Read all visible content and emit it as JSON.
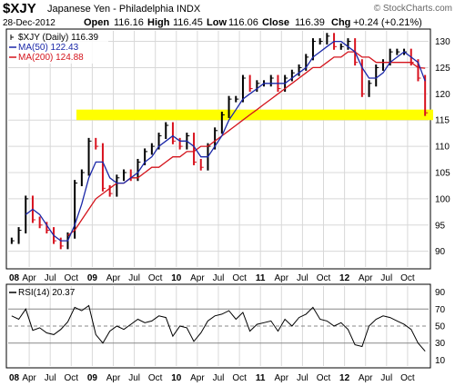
{
  "header": {
    "symbol": "$XJY",
    "name": "Japanese Yen - Philadelphia INDX",
    "date": "28-Dec-2012",
    "open_label": "Open",
    "open": "116.16",
    "high_label": "High",
    "high": "116.45",
    "low_label": "Low",
    "low": "116.06",
    "close_label": "Close",
    "close": "116.39",
    "chg_label": "Chg",
    "chg": "+0.24 (+0.21%)",
    "watermark": "© StockCharts.com"
  },
  "colors": {
    "price": "#000000",
    "up_bar": "#000000",
    "down_bar": "#d8121e",
    "ma50": "#1a27a8",
    "ma200": "#d4141c",
    "rsi": "#000000",
    "highlight": "#ffff00",
    "grid": "#d8d8d8"
  },
  "chart_data": [
    {
      "type": "line",
      "panel": "price",
      "title": "$XJY (Daily) 116.39",
      "legend": [
        {
          "label": "$XJY (Daily) 116.39",
          "color": "#000000"
        },
        {
          "label": "MA(50) 122.43",
          "color": "#1a27a8"
        },
        {
          "label": "MA(200) 124.88",
          "color": "#d4141c"
        }
      ],
      "legend_position": "top-left",
      "ylim": [
        87,
        132
      ],
      "y_ticks": [
        90,
        95,
        100,
        105,
        110,
        115,
        120,
        125,
        130
      ],
      "x_range": [
        "2008-01",
        "2013-01"
      ],
      "x_tick_labels": [
        "08",
        "Apr",
        "Jul",
        "Oct",
        "09",
        "Apr",
        "Jul",
        "Oct",
        "10",
        "Apr",
        "Jul",
        "Oct",
        "11",
        "Apr",
        "Jul",
        "Oct",
        "12",
        "Apr",
        "Jul",
        "Oct"
      ],
      "x_tick_bold": [
        true,
        false,
        false,
        false,
        true,
        false,
        false,
        false,
        true,
        false,
        false,
        false,
        true,
        false,
        false,
        false,
        true,
        false,
        false,
        false
      ],
      "highlight_band": [
        115,
        117
      ],
      "grid": true,
      "series": [
        {
          "name": "$XJY",
          "x": [
            "2008-01",
            "2008-02",
            "2008-03",
            "2008-04",
            "2008-05",
            "2008-06",
            "2008-07",
            "2008-08",
            "2008-09",
            "2008-10",
            "2008-11",
            "2008-12",
            "2009-01",
            "2009-02",
            "2009-03",
            "2009-04",
            "2009-05",
            "2009-06",
            "2009-07",
            "2009-08",
            "2009-09",
            "2009-10",
            "2009-11",
            "2009-12",
            "2010-01",
            "2010-02",
            "2010-03",
            "2010-04",
            "2010-05",
            "2010-06",
            "2010-07",
            "2010-08",
            "2010-09",
            "2010-10",
            "2010-11",
            "2010-12",
            "2011-01",
            "2011-02",
            "2011-03",
            "2011-04",
            "2011-05",
            "2011-06",
            "2011-07",
            "2011-08",
            "2011-09",
            "2011-10",
            "2011-11",
            "2011-12",
            "2012-01",
            "2012-02",
            "2012-03",
            "2012-04",
            "2012-05",
            "2012-06",
            "2012-07",
            "2012-08",
            "2012-09",
            "2012-10",
            "2012-11",
            "2012-12"
          ],
          "values": [
            92,
            94,
            100,
            96,
            95,
            94,
            92,
            91,
            93,
            103,
            105,
            111,
            110,
            102,
            101,
            104,
            105,
            104,
            107,
            109,
            110,
            112,
            114,
            111,
            110,
            112,
            107,
            106,
            110,
            113,
            116,
            119,
            119,
            123,
            121,
            122,
            122,
            123,
            121,
            123,
            124,
            125,
            127,
            130,
            130,
            131,
            129,
            129,
            130,
            126,
            120,
            122,
            125,
            126,
            128,
            128,
            128,
            126,
            123,
            116.39
          ]
        },
        {
          "name": "MA(50)",
          "x": [
            "2008-03",
            "2008-04",
            "2008-05",
            "2008-06",
            "2008-07",
            "2008-08",
            "2008-09",
            "2008-10",
            "2008-11",
            "2008-12",
            "2009-01",
            "2009-02",
            "2009-03",
            "2009-04",
            "2009-05",
            "2009-06",
            "2009-07",
            "2009-08",
            "2009-09",
            "2009-10",
            "2009-11",
            "2009-12",
            "2010-01",
            "2010-02",
            "2010-03",
            "2010-04",
            "2010-05",
            "2010-06",
            "2010-07",
            "2010-08",
            "2010-09",
            "2010-10",
            "2010-11",
            "2010-12",
            "2011-01",
            "2011-02",
            "2011-03",
            "2011-04",
            "2011-05",
            "2011-06",
            "2011-07",
            "2011-08",
            "2011-09",
            "2011-10",
            "2011-11",
            "2011-12",
            "2012-01",
            "2012-02",
            "2012-03",
            "2012-04",
            "2012-05",
            "2012-06",
            "2012-07",
            "2012-08",
            "2012-09",
            "2012-10",
            "2012-11",
            "2012-12"
          ],
          "values": [
            97,
            98,
            97,
            95,
            93,
            92,
            92,
            95,
            99,
            104,
            107,
            107,
            104,
            103,
            103,
            104,
            105,
            107,
            108,
            110,
            111,
            112,
            111,
            111,
            110,
            108,
            108,
            110,
            112,
            115,
            117,
            119,
            120,
            121,
            122,
            122,
            122,
            122,
            123,
            124,
            125,
            127,
            128,
            129,
            130,
            130,
            129,
            128,
            125,
            123,
            123,
            124,
            126,
            127,
            128,
            127,
            126,
            122.43
          ]
        },
        {
          "name": "MA(200)",
          "x": [
            "2008-09",
            "2008-10",
            "2008-11",
            "2008-12",
            "2009-01",
            "2009-02",
            "2009-03",
            "2009-04",
            "2009-05",
            "2009-06",
            "2009-07",
            "2009-08",
            "2009-09",
            "2009-10",
            "2009-11",
            "2009-12",
            "2010-01",
            "2010-02",
            "2010-03",
            "2010-04",
            "2010-05",
            "2010-06",
            "2010-07",
            "2010-08",
            "2010-09",
            "2010-10",
            "2010-11",
            "2010-12",
            "2011-01",
            "2011-02",
            "2011-03",
            "2011-04",
            "2011-05",
            "2011-06",
            "2011-07",
            "2011-08",
            "2011-09",
            "2011-10",
            "2011-11",
            "2011-12",
            "2012-01",
            "2012-02",
            "2012-03",
            "2012-04",
            "2012-05",
            "2012-06",
            "2012-07",
            "2012-08",
            "2012-09",
            "2012-10",
            "2012-11",
            "2012-12"
          ],
          "values": [
            93,
            94,
            96,
            98,
            100,
            101,
            102,
            103,
            103,
            104,
            104,
            105,
            106,
            106,
            107,
            108,
            108,
            109,
            109,
            110,
            110,
            111,
            112,
            113,
            114,
            115,
            116,
            117,
            118,
            119,
            120,
            121,
            122,
            123,
            124,
            125,
            125,
            126,
            127,
            127,
            128,
            128,
            127,
            127,
            126,
            126,
            126,
            126,
            126,
            126,
            125,
            124.88
          ]
        }
      ]
    },
    {
      "type": "line",
      "panel": "rsi",
      "title": "RSI(14) 20.37",
      "legend": [
        {
          "label": "RSI(14) 20.37",
          "color": "#000000"
        }
      ],
      "legend_position": "top-left",
      "ylim": [
        3,
        97
      ],
      "y_ticks": [
        10,
        30,
        50,
        70,
        90
      ],
      "reference_lines": [
        30,
        50,
        70
      ],
      "x_range": [
        "2008-01",
        "2013-01"
      ],
      "series": [
        {
          "name": "RSI(14)",
          "x": [
            "2008-01",
            "2008-02",
            "2008-03",
            "2008-04",
            "2008-05",
            "2008-06",
            "2008-07",
            "2008-08",
            "2008-09",
            "2008-10",
            "2008-11",
            "2008-12",
            "2009-01",
            "2009-02",
            "2009-03",
            "2009-04",
            "2009-05",
            "2009-06",
            "2009-07",
            "2009-08",
            "2009-09",
            "2009-10",
            "2009-11",
            "2009-12",
            "2010-01",
            "2010-02",
            "2010-03",
            "2010-04",
            "2010-05",
            "2010-06",
            "2010-07",
            "2010-08",
            "2010-09",
            "2010-10",
            "2010-11",
            "2010-12",
            "2011-01",
            "2011-02",
            "2011-03",
            "2011-04",
            "2011-05",
            "2011-06",
            "2011-07",
            "2011-08",
            "2011-09",
            "2011-10",
            "2011-11",
            "2011-12",
            "2012-01",
            "2012-02",
            "2012-03",
            "2012-04",
            "2012-05",
            "2012-06",
            "2012-07",
            "2012-08",
            "2012-09",
            "2012-10",
            "2012-11",
            "2012-12"
          ],
          "values": [
            62,
            58,
            70,
            45,
            48,
            42,
            40,
            46,
            55,
            72,
            68,
            74,
            40,
            30,
            44,
            50,
            46,
            52,
            58,
            54,
            56,
            62,
            60,
            38,
            50,
            48,
            32,
            42,
            56,
            62,
            64,
            68,
            58,
            66,
            44,
            52,
            54,
            56,
            44,
            58,
            50,
            60,
            64,
            72,
            58,
            56,
            50,
            54,
            46,
            28,
            26,
            50,
            58,
            62,
            60,
            56,
            52,
            46,
            30,
            20.37
          ]
        }
      ]
    }
  ]
}
